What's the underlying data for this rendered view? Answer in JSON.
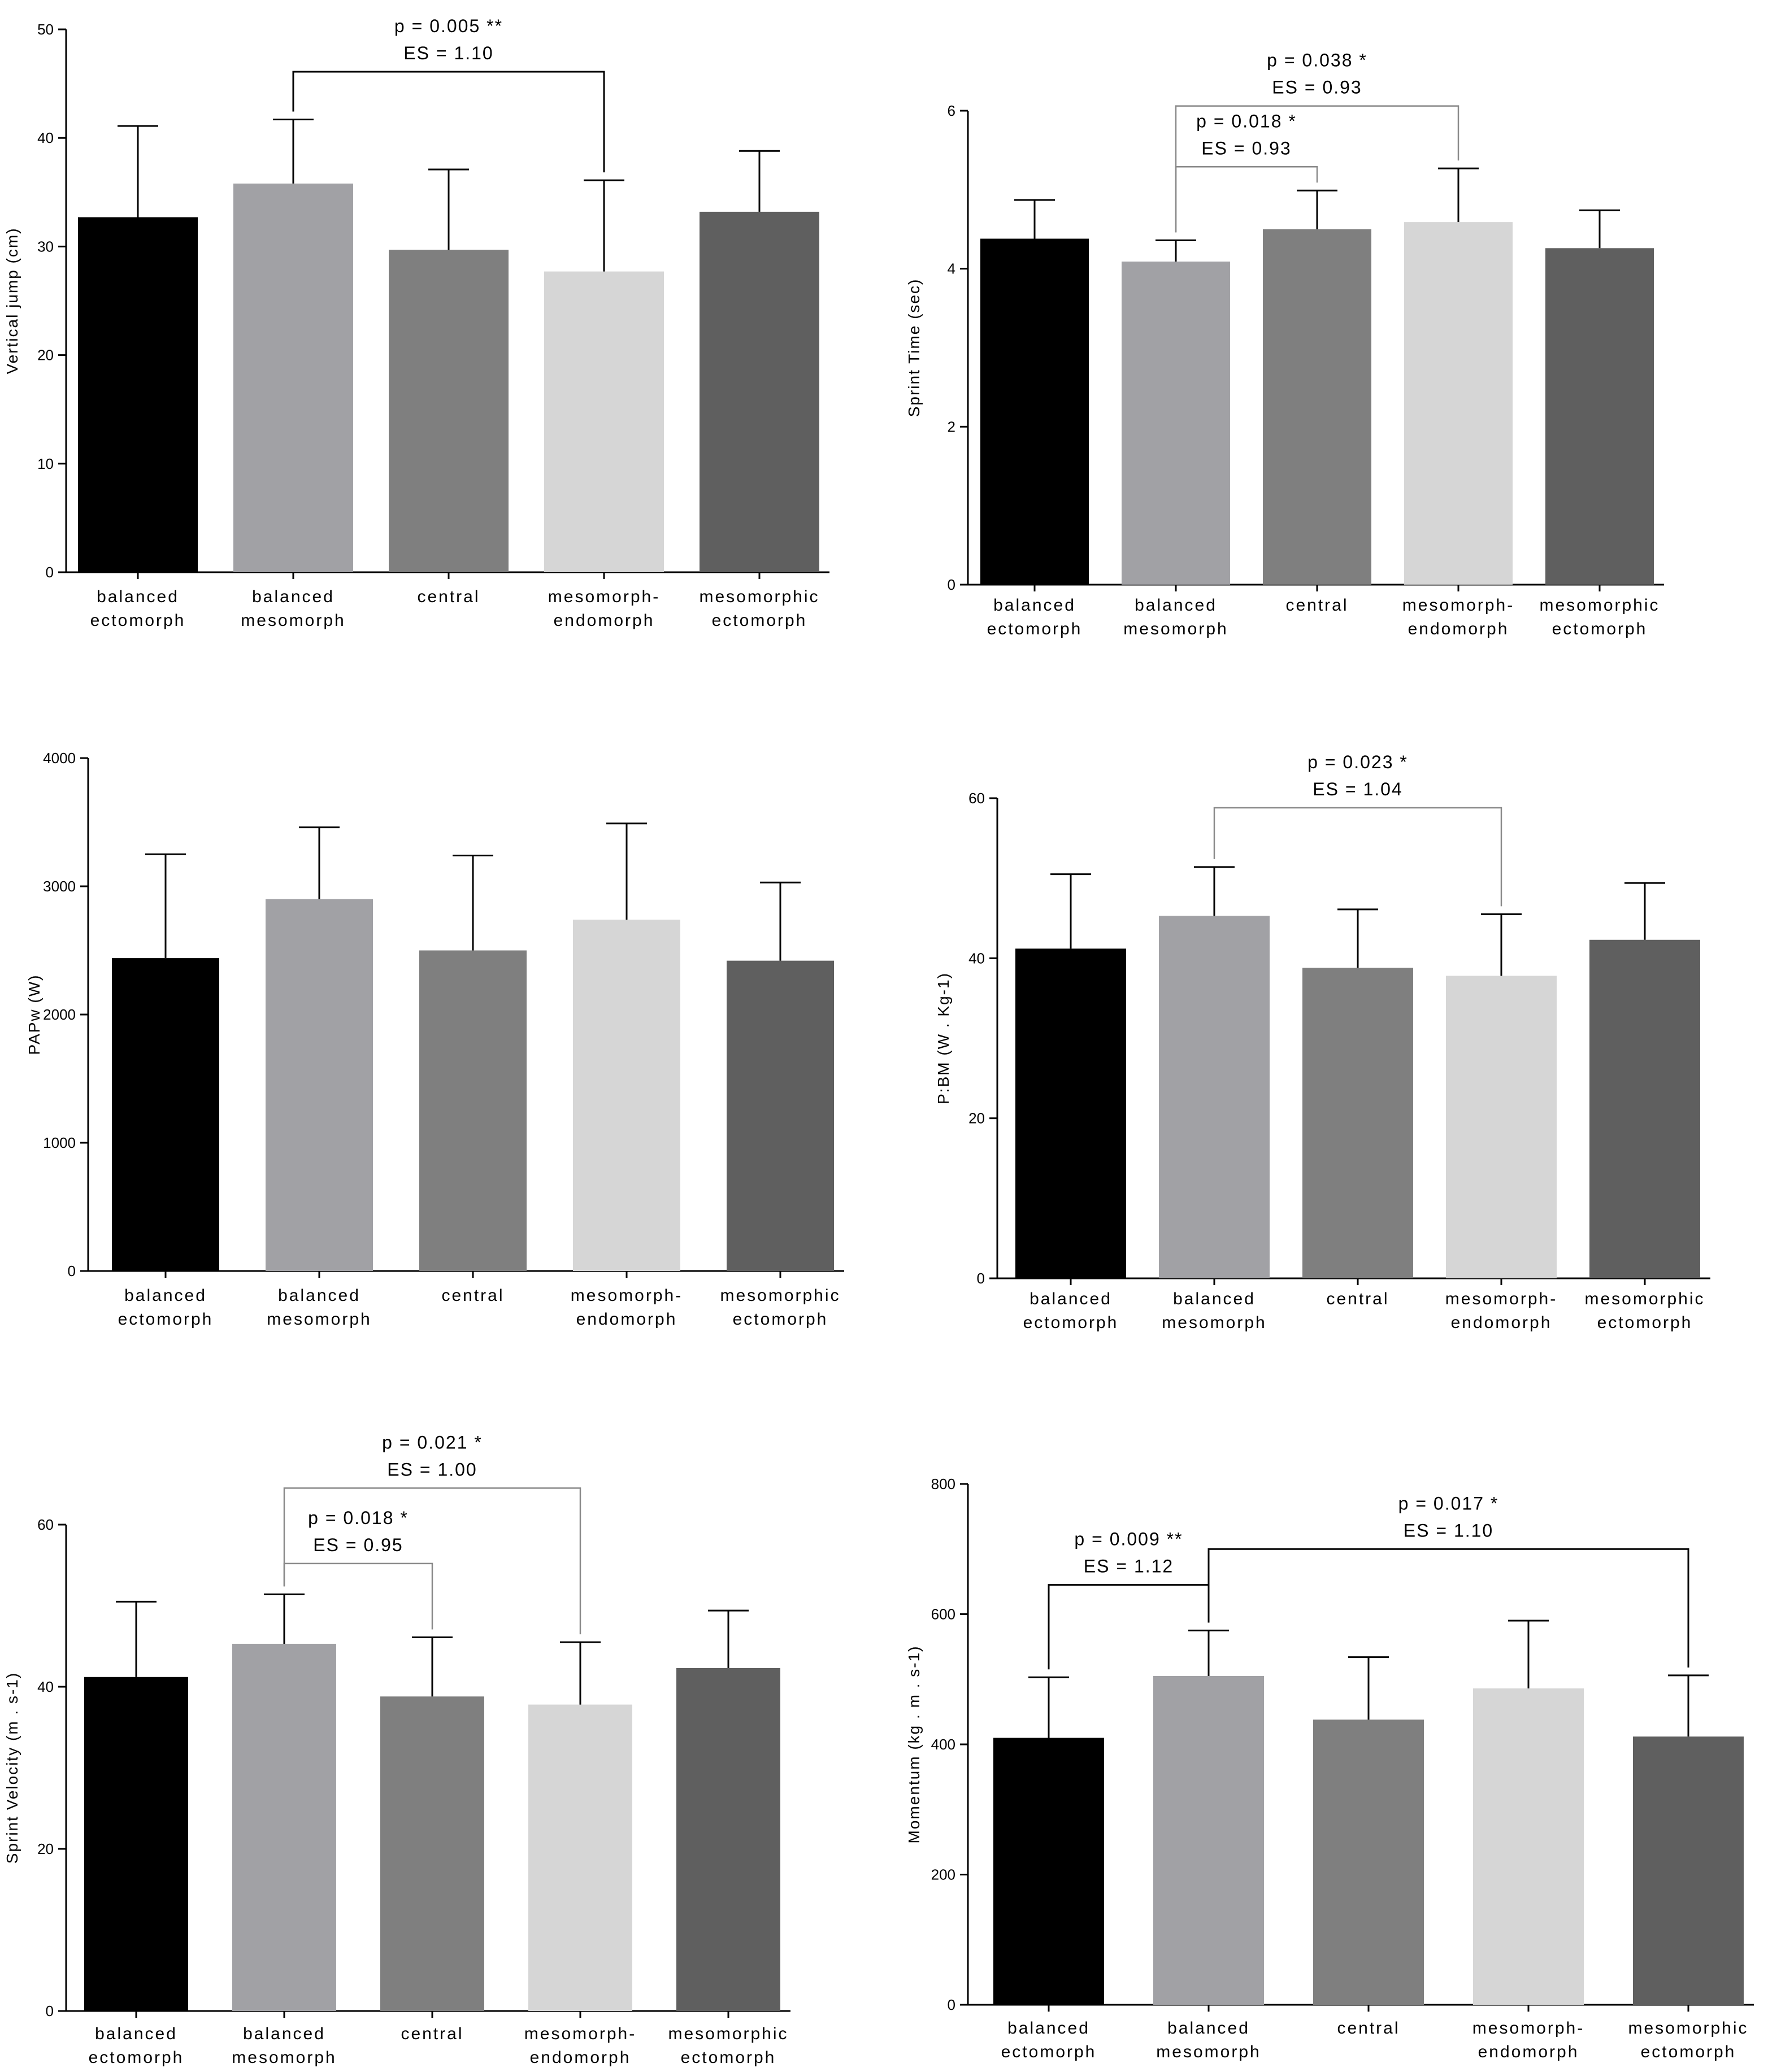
{
  "figure": {
    "background": "#ffffff",
    "panel_count": 6
  },
  "colors": {
    "balanced ectomorph": "#000000",
    "balanced mesomorph": "#a1a1a5",
    "central": "#7f7f7f",
    "mesomorph-endomorph": "#d6d6d6",
    "mesomorphic ectomorph": "#5f5f5f",
    "axis": "#000000",
    "bracket_heavy": "#000000",
    "bracket_light": "#8a8a8a"
  },
  "chart_data": [
    {
      "type": "bar",
      "panel": "top-left",
      "title": "",
      "xlabel": "",
      "ylabel": "Vertical jump (cm)",
      "ylim": [
        0,
        50
      ],
      "yticks": [
        "0",
        "10",
        "20",
        "30",
        "40",
        "50"
      ],
      "categories": [
        [
          "balanced",
          "ectomorph"
        ],
        [
          "balanced",
          "mesomorph"
        ],
        [
          "central"
        ],
        [
          "mesomorph-",
          "endomorph"
        ],
        [
          "mesomorphic",
          "ectomorph"
        ]
      ],
      "values": [
        32.7,
        35.8,
        29.7,
        27.7,
        33.2
      ],
      "errors": [
        8.4,
        5.9,
        7.4,
        8.4,
        5.6
      ],
      "annotations": [
        {
          "from": 1,
          "to": 3,
          "lines": [
            "p = 0.005 **",
            "ES = 1.10"
          ],
          "level": 46.1,
          "style": "heavy"
        }
      ]
    },
    {
      "type": "bar",
      "panel": "top-right",
      "title": "",
      "xlabel": "",
      "ylabel": "Sprint Time (sec)",
      "ylim": [
        0,
        6
      ],
      "yticks": [
        "0",
        "2",
        "4",
        "6"
      ],
      "categories": [
        [
          "balanced",
          "ectomorph"
        ],
        [
          "balanced",
          "mesomorph"
        ],
        [
          "central"
        ],
        [
          "mesomorph-",
          "endomorph"
        ],
        [
          "mesomorphic",
          "ectomorph"
        ]
      ],
      "values": [
        4.38,
        4.09,
        4.5,
        4.59,
        4.26
      ],
      "errors": [
        0.49,
        0.27,
        0.49,
        0.68,
        0.48
      ],
      "annotations": [
        {
          "from": 1,
          "to": 2,
          "lines": [
            "p = 0.018 *",
            "ES = 0.93"
          ],
          "level": 5.29,
          "style": "light"
        },
        {
          "from": 1,
          "to": 3,
          "lines": [
            "p = 0.038 *",
            "ES = 0.93"
          ],
          "level": 6.06,
          "style": "light"
        }
      ]
    },
    {
      "type": "bar",
      "panel": "middle-left",
      "title": "",
      "xlabel": "",
      "ylabel": "PAPw (W)",
      "ylim": [
        0,
        4000
      ],
      "yticks": [
        "0",
        "1000",
        "2000",
        "3000",
        "4000"
      ],
      "categories": [
        [
          "balanced",
          "ectomorph"
        ],
        [
          "balanced",
          "mesomorph"
        ],
        [
          "central"
        ],
        [
          "mesomorph-",
          "endomorph"
        ],
        [
          "mesomorphic",
          "ectomorph"
        ]
      ],
      "values": [
        2440,
        2900,
        2500,
        2740,
        2420
      ],
      "errors": [
        810,
        560,
        740,
        750,
        610
      ],
      "annotations": []
    },
    {
      "type": "bar",
      "panel": "middle-right",
      "title": "",
      "xlabel": "",
      "ylabel": "P:BM (W . Kg-1)",
      "ylim": [
        0,
        60
      ],
      "yticks": [
        "0",
        "20",
        "40",
        "60"
      ],
      "categories": [
        [
          "balanced",
          "ectomorph"
        ],
        [
          "balanced",
          "mesomorph"
        ],
        [
          "central"
        ],
        [
          "mesomorph-",
          "endomorph"
        ],
        [
          "mesomorphic",
          "ectomorph"
        ]
      ],
      "values": [
        41.2,
        45.3,
        38.8,
        37.8,
        42.3
      ],
      "errors": [
        9.3,
        6.1,
        7.3,
        7.7,
        7.1
      ],
      "annotations": [
        {
          "from": 1,
          "to": 3,
          "lines": [
            "p = 0.023 *",
            "ES = 1.04"
          ],
          "level": 58.8,
          "style": "light"
        }
      ]
    },
    {
      "type": "bar",
      "panel": "bottom-left",
      "title": "",
      "xlabel": "",
      "ylabel": "Sprint Velocity (m . s-1)",
      "ylim": [
        0,
        60
      ],
      "yticks": [
        "0",
        "20",
        "40",
        "60"
      ],
      "categories": [
        [
          "balanced",
          "ectomorph"
        ],
        [
          "balanced",
          "mesomorph"
        ],
        [
          "central"
        ],
        [
          "mesomorph-",
          "endomorph"
        ],
        [
          "mesomorphic",
          "ectomorph"
        ]
      ],
      "values": [
        41.2,
        45.3,
        38.8,
        37.8,
        42.3
      ],
      "errors": [
        9.3,
        6.1,
        7.3,
        7.7,
        7.1
      ],
      "annotations": [
        {
          "from": 1,
          "to": 2,
          "lines": [
            "p = 0.018 *",
            "ES = 0.95"
          ],
          "level": 55.2,
          "style": "light"
        },
        {
          "from": 1,
          "to": 3,
          "lines": [
            "p = 0.021 *",
            "ES = 1.00"
          ],
          "level": 64.5,
          "style": "light"
        }
      ]
    },
    {
      "type": "bar",
      "panel": "bottom-right",
      "title": "",
      "xlabel": "",
      "ylabel": "Momentum (kg . m . s-1)",
      "ylim": [
        0,
        800
      ],
      "yticks": [
        "0",
        "200",
        "400",
        "600",
        "800"
      ],
      "categories": [
        [
          "balanced",
          "ectomorph"
        ],
        [
          "balanced",
          "mesomorph"
        ],
        [
          "central"
        ],
        [
          "mesomorph-",
          "endomorph"
        ],
        [
          "mesomorphic",
          "ectomorph"
        ]
      ],
      "values": [
        410,
        505,
        438,
        486,
        412
      ],
      "errors": [
        93,
        70,
        96,
        104,
        94
      ],
      "annotations": [
        {
          "from": 0,
          "to": 1,
          "lines": [
            "p = 0.009 **",
            "ES = 1.12"
          ],
          "level": 645,
          "style": "heavy"
        },
        {
          "from": 1,
          "to": 4,
          "lines": [
            "p = 0.017 *",
            "ES = 1.10"
          ],
          "level": 700,
          "style": "heavy"
        }
      ]
    }
  ]
}
